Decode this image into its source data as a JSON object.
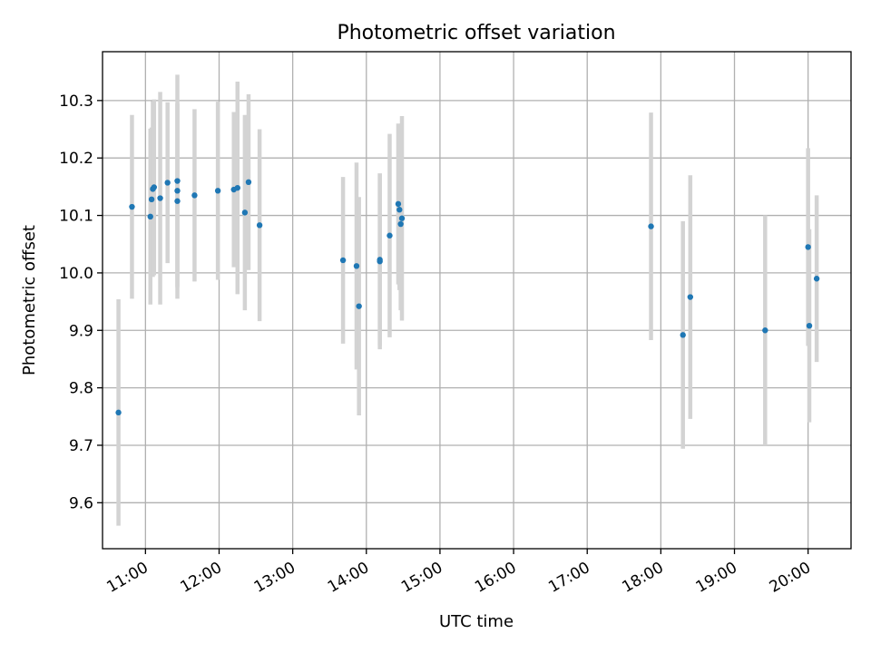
{
  "chart_data": {
    "type": "scatter",
    "title": "Photometric offset variation",
    "xlabel": "UTC time",
    "ylabel": "Photometric offset",
    "grid": true,
    "x_is_time": true,
    "xlim": [
      "10:25",
      "20:35"
    ],
    "ylim": [
      9.52,
      10.385
    ],
    "x_ticks": [
      "11:00",
      "12:00",
      "13:00",
      "14:00",
      "15:00",
      "16:00",
      "17:00",
      "18:00",
      "19:00",
      "20:00"
    ],
    "y_ticks": [
      9.6,
      9.7,
      9.8,
      9.9,
      10.0,
      10.1,
      10.2,
      10.3
    ],
    "y_tick_labels": [
      "9.6",
      "9.7",
      "9.8",
      "9.9",
      "10.0",
      "10.1",
      "10.2",
      "10.3"
    ],
    "marker_color": "#1f77b4",
    "errorbar_color": "#d3d3d3",
    "points": [
      {
        "t": "10:38",
        "y": 9.757,
        "err": 0.197
      },
      {
        "t": "10:49",
        "y": 10.115,
        "err": 0.16
      },
      {
        "t": "11:04",
        "y": 10.098,
        "err": 0.153
      },
      {
        "t": "11:05",
        "y": 10.128,
        "err": 0.125
      },
      {
        "t": "11:06",
        "y": 10.146,
        "err": 0.153
      },
      {
        "t": "11:07",
        "y": 10.149,
        "err": 0.153
      },
      {
        "t": "11:12",
        "y": 10.13,
        "err": 0.185
      },
      {
        "t": "11:18",
        "y": 10.157,
        "err": 0.14
      },
      {
        "t": "11:26",
        "y": 10.16,
        "err": 0.185
      },
      {
        "t": "11:26",
        "y": 10.143,
        "err": 0.15
      },
      {
        "t": "11:26",
        "y": 10.125,
        "err": 0.17
      },
      {
        "t": "11:40",
        "y": 10.135,
        "err": 0.15
      },
      {
        "t": "11:59",
        "y": 10.143,
        "err": 0.155
      },
      {
        "t": "12:12",
        "y": 10.145,
        "err": 0.135
      },
      {
        "t": "12:15",
        "y": 10.148,
        "err": 0.185
      },
      {
        "t": "12:21",
        "y": 10.105,
        "err": 0.17
      },
      {
        "t": "12:24",
        "y": 10.158,
        "err": 0.153
      },
      {
        "t": "12:33",
        "y": 10.083,
        "err": 0.167
      },
      {
        "t": "13:41",
        "y": 10.022,
        "err": 0.145
      },
      {
        "t": "13:52",
        "y": 10.012,
        "err": 0.18
      },
      {
        "t": "13:54",
        "y": 9.942,
        "err": 0.19
      },
      {
        "t": "14:11",
        "y": 10.02,
        "err": 0.153
      },
      {
        "t": "14:11",
        "y": 10.023,
        "err": 0.15
      },
      {
        "t": "14:19",
        "y": 10.065,
        "err": 0.177
      },
      {
        "t": "14:26",
        "y": 10.12,
        "err": 0.14
      },
      {
        "t": "14:27",
        "y": 10.11,
        "err": 0.14
      },
      {
        "t": "14:28",
        "y": 10.085,
        "err": 0.15
      },
      {
        "t": "14:29",
        "y": 10.095,
        "err": 0.178
      },
      {
        "t": "17:52",
        "y": 10.081,
        "err": 0.198
      },
      {
        "t": "18:18",
        "y": 9.892,
        "err": 0.198
      },
      {
        "t": "18:24",
        "y": 9.958,
        "err": 0.212
      },
      {
        "t": "19:25",
        "y": 9.9,
        "err": 0.2
      },
      {
        "t": "20:00",
        "y": 10.045,
        "err": 0.172
      },
      {
        "t": "20:01",
        "y": 9.908,
        "err": 0.168
      },
      {
        "t": "20:07",
        "y": 9.99,
        "err": 0.145
      }
    ]
  }
}
